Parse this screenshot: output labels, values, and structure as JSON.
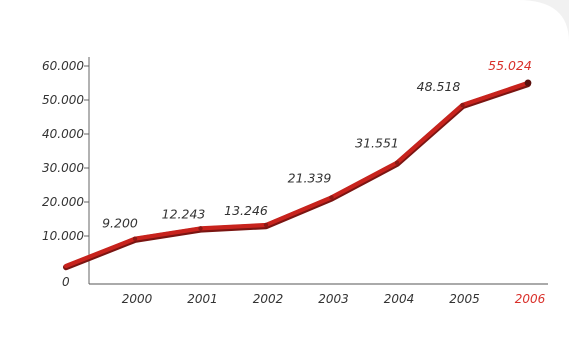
{
  "chart_data": {
    "type": "line",
    "title": "",
    "xlabel": "",
    "ylabel": "",
    "x_start_value": 0,
    "categories": [
      "2000",
      "2001",
      "2002",
      "2003",
      "2004",
      "2005",
      "2006"
    ],
    "series": [
      {
        "values": [
          9200,
          12243,
          13246,
          21339,
          31551,
          48518,
          55024
        ]
      }
    ],
    "data_labels": [
      "9.200",
      "12.243",
      "13.246",
      "21.339",
      "31.551",
      "48.518",
      "55.024"
    ],
    "y_ticks": [
      {
        "value": 0,
        "label": "0"
      },
      {
        "value": 10000,
        "label": "10.000"
      },
      {
        "value": 20000,
        "label": "20.000"
      },
      {
        "value": 30000,
        "label": "30.000"
      },
      {
        "value": 40000,
        "label": "40.000"
      },
      {
        "value": 50000,
        "label": "50.000"
      },
      {
        "value": 60000,
        "label": "60.000"
      }
    ],
    "ylim": [
      0,
      60000
    ],
    "highlight_category": "2006",
    "grid": false,
    "colors": {
      "line": "#c8231d",
      "line_shadow": "#7a1512",
      "highlight_text": "#d9302a",
      "text": "#333333",
      "axis": "#555555",
      "background": "#ffffff",
      "page": "#f1f1f1"
    }
  }
}
